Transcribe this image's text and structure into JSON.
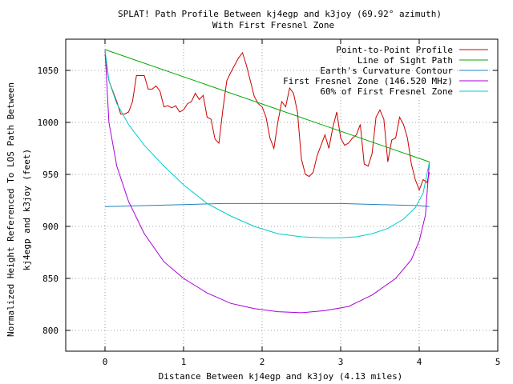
{
  "chart_data": {
    "type": "line",
    "title": "SPLAT! Path Profile Between kj4egp and k3joy (69.92° azimuth)",
    "subtitle": "With First Fresnel Zone",
    "xlabel": "Distance Between kj4egp and k3joy (4.13 miles)",
    "ylabel_line1": "Normalized Height Referenced To LOS Path Between",
    "ylabel_line2": "kj4egp and k3joy (feet)",
    "xlim": [
      -0.5,
      5
    ],
    "ylim": [
      780,
      1080
    ],
    "x_ticks": [
      0,
      1,
      2,
      3,
      4,
      5
    ],
    "y_ticks": [
      800,
      850,
      900,
      950,
      1000,
      1050
    ],
    "grid": true,
    "legend_position": "top-right",
    "series": [
      {
        "name": "Point-to-Point Profile",
        "color": "#cc0000",
        "x": [
          0.0,
          0.05,
          0.1,
          0.15,
          0.2,
          0.25,
          0.3,
          0.35,
          0.4,
          0.45,
          0.5,
          0.55,
          0.6,
          0.65,
          0.7,
          0.75,
          0.8,
          0.85,
          0.9,
          0.95,
          1.0,
          1.05,
          1.1,
          1.15,
          1.2,
          1.25,
          1.3,
          1.35,
          1.4,
          1.45,
          1.5,
          1.55,
          1.6,
          1.65,
          1.7,
          1.75,
          1.8,
          1.85,
          1.9,
          1.95,
          2.0,
          2.05,
          2.1,
          2.15,
          2.2,
          2.25,
          2.3,
          2.35,
          2.4,
          2.45,
          2.5,
          2.55,
          2.6,
          2.65,
          2.7,
          2.75,
          2.8,
          2.85,
          2.9,
          2.95,
          3.0,
          3.05,
          3.1,
          3.15,
          3.2,
          3.25,
          3.3,
          3.35,
          3.4,
          3.45,
          3.5,
          3.55,
          3.6,
          3.65,
          3.7,
          3.75,
          3.8,
          3.85,
          3.9,
          3.95,
          4.0,
          4.05,
          4.1,
          4.13
        ],
        "values": [
          1065,
          1040,
          1030,
          1020,
          1008,
          1008,
          1010,
          1020,
          1045,
          1045,
          1045,
          1032,
          1032,
          1035,
          1030,
          1015,
          1016,
          1014,
          1016,
          1010,
          1012,
          1018,
          1020,
          1028,
          1022,
          1026,
          1005,
          1003,
          984,
          980,
          1012,
          1040,
          1048,
          1055,
          1062,
          1067,
          1055,
          1040,
          1025,
          1018,
          1015,
          1005,
          985,
          975,
          1000,
          1020,
          1015,
          1033,
          1028,
          1010,
          965,
          950,
          948,
          952,
          968,
          978,
          988,
          975,
          995,
          1010,
          985,
          978,
          980,
          985,
          988,
          998,
          960,
          958,
          970,
          1005,
          1012,
          1003,
          962,
          983,
          985,
          1005,
          998,
          985,
          960,
          945,
          935,
          945,
          942,
          952
        ]
      },
      {
        "name": "Line of Sight Path",
        "color": "#00aa00",
        "x": [
          0.0,
          4.13
        ],
        "values": [
          1070,
          962
        ]
      },
      {
        "name": "Earth's Curvature Contour",
        "color": "#2080c0",
        "x": [
          0.0,
          0.5,
          1.0,
          1.5,
          2.0,
          2.5,
          3.0,
          3.5,
          4.0,
          4.13
        ],
        "values": [
          919,
          920,
          921,
          922,
          922,
          922,
          922,
          921,
          920,
          919
        ]
      },
      {
        "name": "First Fresnel Zone (146.520 MHz)",
        "color": "#aa00dd",
        "x": [
          0.0,
          0.05,
          0.15,
          0.3,
          0.5,
          0.75,
          1.0,
          1.3,
          1.6,
          1.9,
          2.2,
          2.5,
          2.8,
          3.1,
          3.4,
          3.7,
          3.9,
          4.0,
          4.08,
          4.13
        ],
        "values": [
          1070,
          1000,
          958,
          924,
          893,
          866,
          850,
          836,
          826,
          821,
          818,
          817,
          819,
          823,
          834,
          850,
          868,
          886,
          911,
          962
        ]
      },
      {
        "name": "60% of First Fresnel Zone",
        "color": "#00cccc",
        "x": [
          0.0,
          0.05,
          0.15,
          0.3,
          0.5,
          0.75,
          1.0,
          1.3,
          1.6,
          1.9,
          2.2,
          2.5,
          2.8,
          3.0,
          3.2,
          3.4,
          3.6,
          3.8,
          3.95,
          4.05,
          4.13
        ],
        "values": [
          1070,
          1040,
          1018,
          998,
          978,
          958,
          940,
          922,
          910,
          900,
          893,
          890,
          889,
          889,
          890,
          893,
          898,
          907,
          918,
          932,
          962
        ]
      }
    ]
  }
}
